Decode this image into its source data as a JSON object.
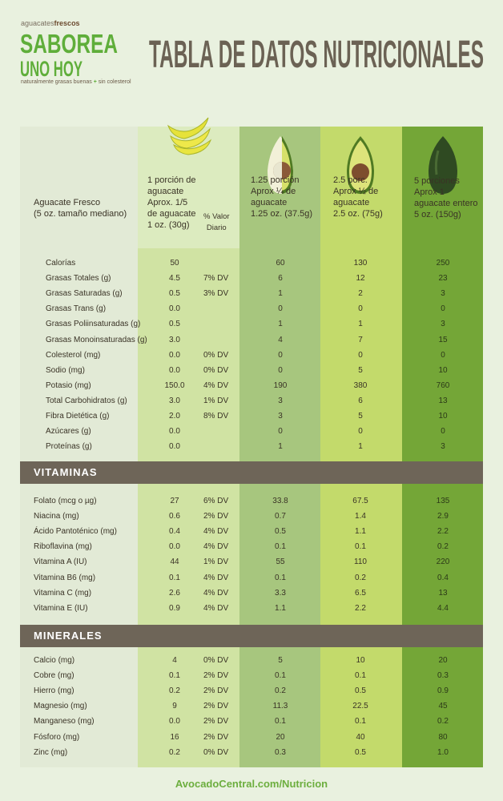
{
  "logo": {
    "small_prefix": "aguacates",
    "small_bold": "frescos",
    "line1": "SABOREA",
    "line2": "UNO HOY",
    "tagline_a": "naturalmente grasas buenas",
    "tagline_plus": "+",
    "tagline_b": "sin colesterol"
  },
  "title": "TABLA DE DATOS NUTRICIONALES",
  "colors": {
    "background": "#e9f1df",
    "label_col": "#e2ead6",
    "col1": "#d0e3a3",
    "col2": "#a7c67e",
    "col3": "#c3da6b",
    "col4": "#74a637",
    "section_bar": "#6e6558",
    "brand_green": "#5fae3a"
  },
  "header": {
    "label": [
      "Aguacate Fresco",
      "(5 oz. tamaño mediano)"
    ],
    "col1": [
      "1 porción de",
      "aguacate",
      "Aprox. 1/5",
      "de aguacate",
      "1 oz. (30g)"
    ],
    "dv": [
      "% Valor",
      "Diario"
    ],
    "col2": [
      "1.25 porción",
      "Aprox ¼ de",
      "aguacate",
      "1.25 oz. (37.5g)"
    ],
    "col3": [
      "2.5 porc.",
      "Aprox ½ de",
      "aguacate",
      "2.5 oz. (75g)"
    ],
    "col4": [
      "5 porciones",
      "Aprox 1",
      "aguacate entero",
      "5 oz. (150g)"
    ],
    "icons": [
      "avocado-slices-icon",
      "avocado-quarter-icon",
      "avocado-half-icon",
      "whole-avocado-icon"
    ]
  },
  "main_rows": [
    [
      "Calorías",
      "50",
      "",
      "60",
      "130",
      "250"
    ],
    [
      "Grasas Totales (g)",
      "4.5",
      "7% DV",
      "6",
      "12",
      "23"
    ],
    [
      "Grasas Saturadas (g)",
      "0.5",
      "3% DV",
      "1",
      "2",
      "3"
    ],
    [
      "Grasas Trans (g)",
      "0.0",
      "",
      "0",
      "0",
      "0"
    ],
    [
      "Grasas Poliinsaturadas (g)",
      "0.5",
      "",
      "1",
      "1",
      "3"
    ],
    [
      "Grasas Monoinsaturadas (g)",
      "3.0",
      "",
      "4",
      "7",
      "15"
    ],
    [
      "Colesterol (mg)",
      "0.0",
      "0% DV",
      "0",
      "0",
      "0"
    ],
    [
      "Sodio (mg)",
      "0.0",
      "0% DV",
      "0",
      "5",
      "10"
    ],
    [
      "Potasio (mg)",
      "150.0",
      "4% DV",
      "190",
      "380",
      "760"
    ],
    [
      "Total Carbohidratos (g)",
      "3.0",
      "1% DV",
      "3",
      "6",
      "13"
    ],
    [
      "Fibra Dietética (g)",
      "2.0",
      "8% DV",
      "3",
      "5",
      "10"
    ],
    [
      "Azúcares  (g)",
      "0.0",
      "",
      "0",
      "0",
      "0"
    ],
    [
      "Proteínas (g)",
      "0.0",
      "",
      "1",
      "1",
      "3"
    ]
  ],
  "vitamins": {
    "title": "VITAMINAS",
    "rows": [
      [
        "Folato (mcg o µg)",
        "27",
        "6% DV",
        "33.8",
        "67.5",
        "135"
      ],
      [
        "Niacina (mg)",
        "0.6",
        "2% DV",
        "0.7",
        "1.4",
        "2.9"
      ],
      [
        "Ácido Pantoténico (mg)",
        "0.4",
        "4% DV",
        "0.5",
        "1.1",
        "2.2"
      ],
      [
        "Riboflavina (mg)",
        "0.0",
        "4% DV",
        "0.1",
        "0.1",
        "0.2"
      ],
      [
        "Vitamina A (IU)",
        "44",
        "1% DV",
        "55",
        "110",
        "220"
      ],
      [
        "Vitamina B6 (mg)",
        "0.1",
        "4% DV",
        "0.1",
        "0.2",
        "0.4"
      ],
      [
        "Vitamina C (mg)",
        "2.6",
        "4% DV",
        "3.3",
        "6.5",
        "13"
      ],
      [
        "Vitamina E (IU)",
        "0.9",
        "4% DV",
        "1.1",
        "2.2",
        "4.4"
      ]
    ]
  },
  "minerals": {
    "title": "MINERALES",
    "rows": [
      [
        "Calcio (mg)",
        "4",
        "0% DV",
        "5",
        "10",
        "20"
      ],
      [
        "Cobre (mg)",
        "0.1",
        "2% DV",
        "0.1",
        "0.1",
        "0.3"
      ],
      [
        "Hierro (mg)",
        "0.2",
        "2% DV",
        "0.2",
        "0.5",
        "0.9"
      ],
      [
        "Magnesio (mg)",
        "9",
        "2% DV",
        "11.3",
        "22.5",
        "45"
      ],
      [
        "Manganeso (mg)",
        "0.0",
        "2% DV",
        "0.1",
        "0.1",
        "0.2"
      ],
      [
        "Fósforo (mg)",
        "16",
        "2% DV",
        "20",
        "40",
        "80"
      ],
      [
        "Zinc (mg)",
        "0.2",
        "0% DV",
        "0.3",
        "0.5",
        "1.0"
      ]
    ]
  },
  "footer": "AvocadoCentral.com/Nutricion"
}
